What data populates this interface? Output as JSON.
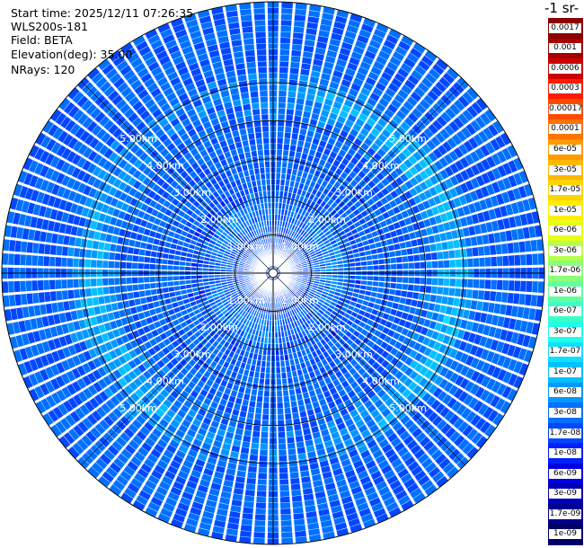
{
  "header": {
    "start_time": "Start time: 2025/12/11 07:26:35",
    "device": "WLS200s-181",
    "field": "Field: BETA",
    "elevation": "Elevation(deg): 35.00",
    "nrays": "NRays: 120"
  },
  "colorbar": {
    "units_label": "-1 sr-",
    "labels": [
      "0.0017",
      "0.001",
      "0.0006",
      "0.0003",
      "0.00017",
      "0.0001",
      "6e-05",
      "3e-05",
      "1.7e-05",
      "1e-05",
      "6e-06",
      "3e-06",
      "1.7e-06",
      "1e-06",
      "6e-07",
      "3e-07",
      "1.7e-07",
      "1e-07",
      "6e-08",
      "3e-08",
      "1.7e-08",
      "1e-08",
      "6e-09",
      "3e-09",
      "1.7e-09",
      "1e-09"
    ],
    "colors": [
      "#8b0000",
      "#a50000",
      "#cc0000",
      "#ff1a00",
      "#ff4a00",
      "#ff7200",
      "#ff9a00",
      "#ffb800",
      "#ffd400",
      "#ffee00",
      "#e8ff1a",
      "#b8ff4a",
      "#8cff78",
      "#60ffa0",
      "#3cffc8",
      "#1effe8",
      "#10e0ff",
      "#00c0ff",
      "#0098ff",
      "#0070ff",
      "#0048ff",
      "#0020ff",
      "#0000e0",
      "#0000b8",
      "#000090",
      "#000068"
    ]
  },
  "chart_data": {
    "type": "heatmap",
    "projection": "polar PPI",
    "field": "BETA",
    "range_rings_km": [
      1,
      2,
      3,
      4,
      5
    ],
    "range_ring_labels": [
      "1.00km",
      "2.00km",
      "3.00km",
      "4.00km",
      "5.00km"
    ],
    "n_rays": 120,
    "max_range_km": 5.7,
    "pattern": "background backscatter ~1e-08 to 3e-08 with enhanced bands ~6e-08 to 3e-07 near 1.5 km and 4.5 km range"
  }
}
